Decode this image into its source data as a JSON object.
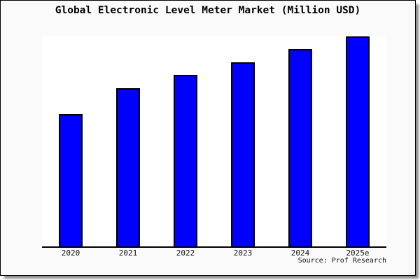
{
  "chart": {
    "title": "Global Electronic Level Meter Market (Million USD)",
    "source": "Source: Prof Research",
    "colors": {
      "bar_fill": "#0000ff",
      "bar_border": "#000000",
      "figure_background": "#fafafa",
      "plot_background": "#ffffff",
      "axis": "#000000",
      "frame_border": "#000000"
    }
  },
  "chart_data": {
    "type": "bar",
    "title": "Global Electronic Level Meter Market (Million USD)",
    "categories": [
      "2020",
      "2021",
      "2022",
      "2023",
      "2024",
      "2025e"
    ],
    "values": [
      189,
      226,
      245,
      263,
      282,
      300
    ],
    "value_note": "y-axis has no tick labels or gridlines; values are relative bar heights measured in pixels",
    "xlabel": "",
    "ylabel": "",
    "ylim": [
      0,
      301
    ],
    "grid": false,
    "legend": false,
    "source": "Source: Prof Research"
  }
}
